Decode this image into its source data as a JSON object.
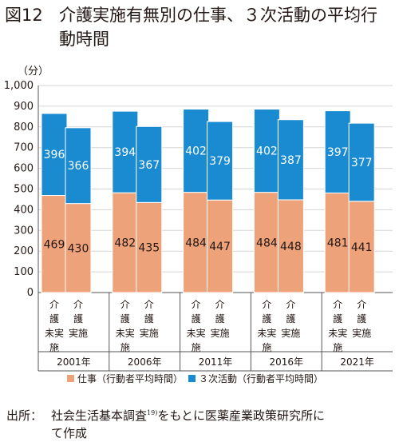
{
  "figure": {
    "number": "図12",
    "title_line1": "介護実施有無別の仕事、３次活動の平均行",
    "title_line2": "動時間"
  },
  "chart_data": {
    "type": "bar",
    "stacked": true,
    "unit_label": "（分）",
    "ylim": [
      0,
      1000
    ],
    "yticks": [
      "0",
      "100",
      "200",
      "300",
      "400",
      "500",
      "600",
      "700",
      "800",
      "900",
      "1,000"
    ],
    "groups": [
      "2001年",
      "2006年",
      "2011年",
      "2016年",
      "2021年"
    ],
    "bar_labels": [
      [
        "介",
        "護",
        "未実",
        "施"
      ],
      [
        "介",
        "護",
        "実施"
      ]
    ],
    "series": [
      {
        "name": "仕事（行動者平均時間）",
        "color": "#eda27a",
        "values": [
          [
            469,
            430
          ],
          [
            482,
            435
          ],
          [
            484,
            447
          ],
          [
            484,
            448
          ],
          [
            481,
            441
          ]
        ]
      },
      {
        "name": "３次活動（行動者平均時間）",
        "color": "#1a8bd0",
        "values": [
          [
            396,
            366
          ],
          [
            394,
            367
          ],
          [
            402,
            379
          ],
          [
            402,
            387
          ],
          [
            397,
            377
          ]
        ]
      }
    ],
    "grid": true,
    "legend_position": "bottom"
  },
  "source_note": {
    "label": "出所：",
    "text_before": "社会生活基本調査",
    "superscript": "19)",
    "text_after": "をもとに医薬産業政策研究所に",
    "text_line2": "て作成"
  }
}
